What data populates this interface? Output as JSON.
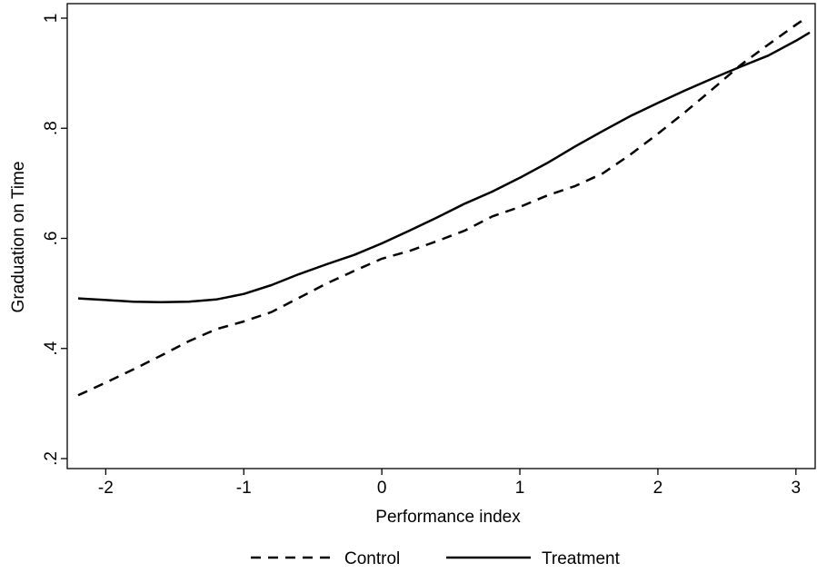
{
  "chart_data": {
    "type": "line",
    "title": "",
    "xlabel": "Performance index",
    "ylabel": "Graduation on Time",
    "xlim": [
      -2.2,
      3.1
    ],
    "ylim": [
      0.2,
      1.0
    ],
    "xticks": [
      -2,
      -1,
      0,
      1,
      2,
      3
    ],
    "xtick_labels": [
      "-2",
      "-1",
      "0",
      "1",
      "2",
      "3"
    ],
    "yticks": [
      0.2,
      0.4,
      0.6,
      0.8,
      1.0
    ],
    "ytick_labels": [
      ".2",
      ".4",
      ".6",
      ".8",
      "1"
    ],
    "grid": false,
    "legend_position": "bottom",
    "series": [
      {
        "name": "Control",
        "style": "dashed",
        "color": "#000000",
        "x": [
          -2.2,
          -2.0,
          -1.8,
          -1.6,
          -1.4,
          -1.2,
          -1.0,
          -0.8,
          -0.6,
          -0.4,
          -0.2,
          0.0,
          0.2,
          0.4,
          0.6,
          0.8,
          1.0,
          1.2,
          1.4,
          1.6,
          1.8,
          2.0,
          2.2,
          2.4,
          2.6,
          2.8,
          3.0,
          3.06
        ],
        "y": [
          0.315,
          0.338,
          0.362,
          0.387,
          0.413,
          0.435,
          0.449,
          0.466,
          0.492,
          0.518,
          0.541,
          0.563,
          0.577,
          0.595,
          0.614,
          0.64,
          0.657,
          0.678,
          0.695,
          0.718,
          0.752,
          0.79,
          0.83,
          0.872,
          0.915,
          0.952,
          0.988,
          0.998
        ]
      },
      {
        "name": "Treatment",
        "style": "solid",
        "color": "#000000",
        "x": [
          -2.2,
          -2.0,
          -1.8,
          -1.6,
          -1.4,
          -1.2,
          -1.0,
          -0.8,
          -0.6,
          -0.4,
          -0.2,
          0.0,
          0.2,
          0.4,
          0.6,
          0.8,
          1.0,
          1.2,
          1.4,
          1.6,
          1.8,
          2.0,
          2.2,
          2.4,
          2.6,
          2.8,
          3.0,
          3.1
        ],
        "y": [
          0.491,
          0.488,
          0.485,
          0.484,
          0.485,
          0.489,
          0.499,
          0.515,
          0.535,
          0.553,
          0.57,
          0.591,
          0.614,
          0.638,
          0.663,
          0.685,
          0.71,
          0.737,
          0.767,
          0.795,
          0.822,
          0.846,
          0.869,
          0.891,
          0.912,
          0.932,
          0.959,
          0.974
        ]
      }
    ]
  }
}
